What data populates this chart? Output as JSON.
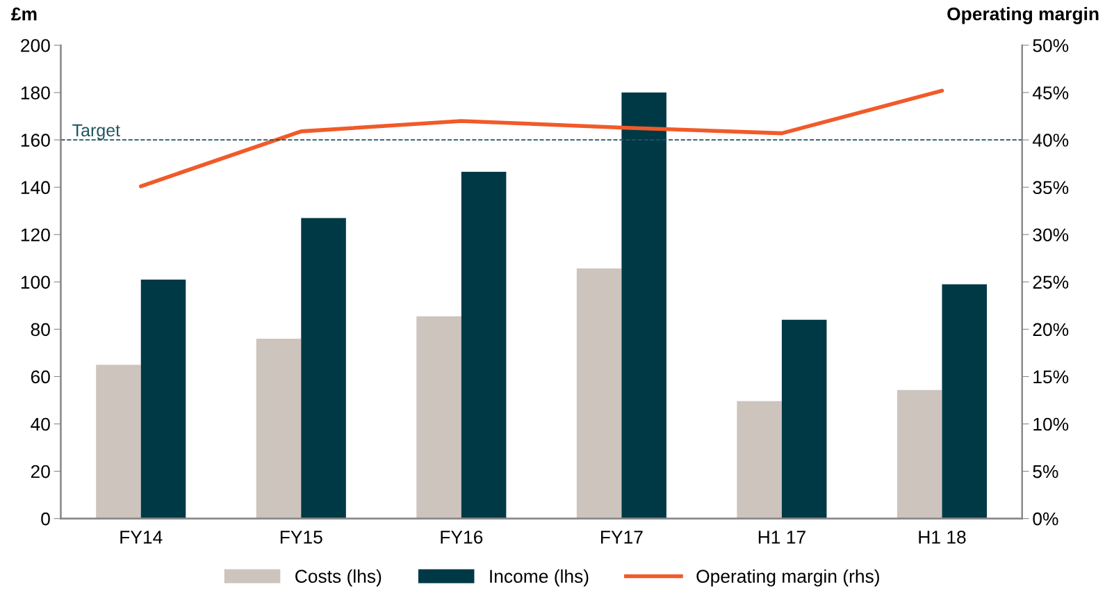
{
  "chart_data": {
    "type": "bar",
    "ylabel": "£m",
    "y2label": "Operating margin",
    "categories": [
      "FY14",
      "FY15",
      "FY16",
      "FY17",
      "H1 17",
      "H1 18"
    ],
    "series": [
      {
        "name": "Costs (lhs)",
        "color": "#cdc4bd",
        "values": [
          65,
          76,
          85.5,
          105.7,
          49.6,
          54.3
        ]
      },
      {
        "name": "Income (lhs)",
        "color": "#003946",
        "values": [
          101,
          127,
          146.5,
          180,
          84,
          99
        ]
      },
      {
        "name": "Operating margin (rhs)",
        "type": "line",
        "axis": "y2",
        "color": "#f15a29",
        "values": [
          35.1,
          40.9,
          42,
          41.3,
          40.7,
          45.2
        ]
      }
    ],
    "ylim": [
      0,
      200
    ],
    "yticks": [
      0,
      20,
      40,
      60,
      80,
      100,
      120,
      140,
      160,
      180,
      200
    ],
    "y2lim": [
      0,
      50
    ],
    "y2ticks": [
      {
        "value": 0,
        "label": "0%"
      },
      {
        "value": 5,
        "label": "5%"
      },
      {
        "value": 10,
        "label": "10%"
      },
      {
        "value": 15,
        "label": "15%"
      },
      {
        "value": 20,
        "label": "20%"
      },
      {
        "value": 25,
        "label": "25%"
      },
      {
        "value": 30,
        "label": "30%"
      },
      {
        "value": 35,
        "label": "35%"
      },
      {
        "value": 40,
        "label": "40%"
      },
      {
        "value": 45,
        "label": "45%"
      },
      {
        "value": 50,
        "label": "50%"
      }
    ],
    "ref_lines": [
      {
        "axis": "y2",
        "value": 40,
        "label": "Target",
        "color": "#1f5560",
        "line_style": "dashed"
      }
    ],
    "legend": "bottom",
    "grid": false,
    "marker": "none",
    "line_style": "solid"
  }
}
